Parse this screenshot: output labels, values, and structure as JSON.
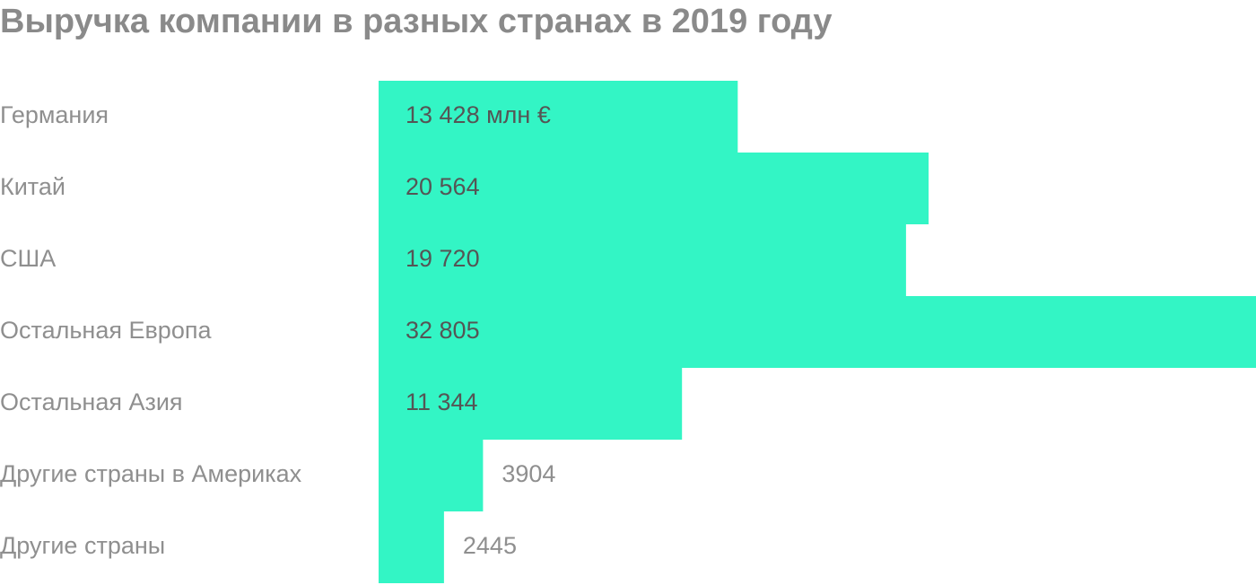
{
  "chart_data": {
    "type": "bar",
    "orientation": "horizontal",
    "title": "Выручка компании в разных странах в 2019 году",
    "categories": [
      "Германия",
      "Китай",
      "США",
      "Остальная Европа",
      "Остальная Азия",
      "Другие страны в Америках",
      "Другие страны"
    ],
    "values": [
      13428,
      20564,
      19720,
      32805,
      11344,
      3904,
      2445
    ],
    "value_labels": [
      "13 428 млн €",
      "20 564",
      "19 720",
      "32 805",
      "11 344",
      "3904",
      "2445"
    ],
    "color": "#33f5c5"
  }
}
